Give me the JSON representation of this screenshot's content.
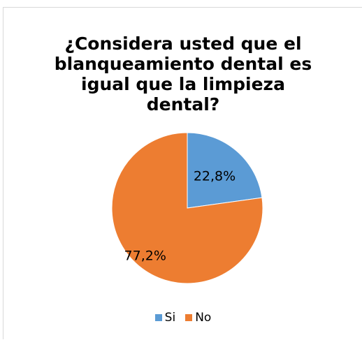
{
  "chart_data": {
    "type": "pie",
    "title_lines": [
      "¿Considera usted que el",
      "blanqueamiento dental es",
      "igual que la limpieza",
      "dental?"
    ],
    "categories": [
      "Si",
      "No"
    ],
    "values": [
      22.8,
      77.2
    ],
    "labels": [
      "22,8%",
      "77,2%"
    ],
    "colors": [
      "#5b9bd5",
      "#ed7d31"
    ],
    "legend_position": "bottom"
  }
}
